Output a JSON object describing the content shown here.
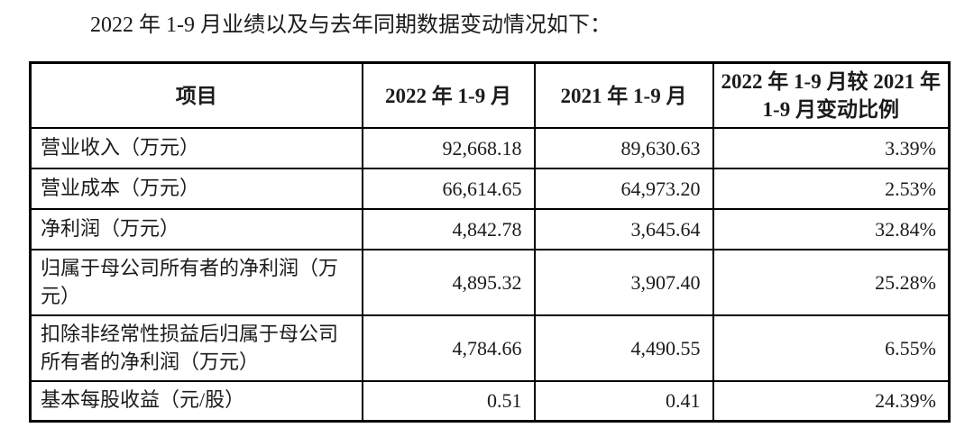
{
  "document": {
    "title": "2022 年 1-9 月业绩以及与去年同期数据变动情况如下："
  },
  "table": {
    "headers": {
      "item": "项目",
      "period_2022": "2022 年 1-9 月",
      "period_2021": "2021 年 1-9 月",
      "change": "2022 年 1-9 月较 2021 年 1-9 月变动比例"
    },
    "rows": [
      {
        "item": "营业收入（万元）",
        "v2022": "92,668.18",
        "v2021": "89,630.63",
        "change": "3.39%"
      },
      {
        "item": "营业成本（万元）",
        "v2022": "66,614.65",
        "v2021": "64,973.20",
        "change": "2.53%"
      },
      {
        "item": "净利润（万元）",
        "v2022": "4,842.78",
        "v2021": "3,645.64",
        "change": "32.84%"
      },
      {
        "item": "归属于母公司所有者的净利润（万元）",
        "v2022": "4,895.32",
        "v2021": "3,907.40",
        "change": "25.28%"
      },
      {
        "item": "扣除非经常性损益后归属于母公司所有者的净利润（万元）",
        "v2022": "4,784.66",
        "v2021": "4,490.55",
        "change": "6.55%"
      },
      {
        "item": "基本每股收益（元/股）",
        "v2022": "0.51",
        "v2021": "0.41",
        "change": "24.39%"
      }
    ]
  },
  "colors": {
    "text": "#1b1b1b",
    "border": "#000000",
    "background": "#ffffff"
  }
}
